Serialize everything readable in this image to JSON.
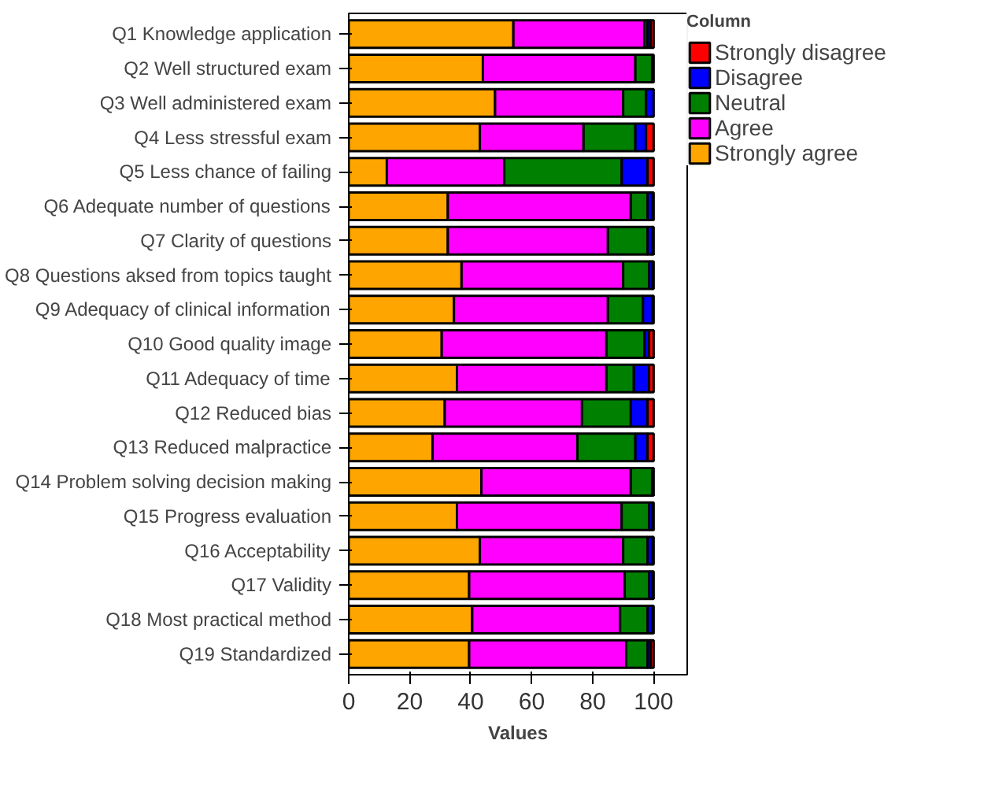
{
  "chart_data": {
    "type": "bar",
    "orientation": "horizontal",
    "stacked": true,
    "xlabel": "Values",
    "legend_title": "Column",
    "legend": "top right",
    "grid": false,
    "categories": [
      "Q1 Knowledge application",
      "Q2 Well structured exam",
      "Q3 Well administered exam",
      "Q4 Less stressful exam",
      "Q5 Less chance of failing",
      "Q6 Adequate number of questions",
      "Q7 Clarity of questions",
      "Q8 Questions aksed from topics taught",
      "Q9 Adequacy of clinical information",
      "Q10 Good quality image",
      "Q11 Adequacy of time",
      "Q12 Reduced bias",
      "Q13 Reduced malpractice",
      "Q14 Problem solving decision making",
      "Q15 Progress evaluation",
      "Q16 Acceptability",
      "Q17 Validity",
      "Q18 Most practical method",
      "Q19 Standardized"
    ],
    "xlim": [
      0,
      111
    ],
    "xticks": [
      0,
      20,
      40,
      60,
      80,
      100
    ],
    "series": [
      {
        "name": "Strongly agree",
        "color": "#ffa500",
        "values": [
          54,
          44,
          48,
          43,
          12.5,
          32.5,
          32.5,
          37,
          34.5,
          30.5,
          35.5,
          31.5,
          27.5,
          43.5,
          35.5,
          43,
          39.5,
          40.5,
          39.5
        ]
      },
      {
        "name": "Agree",
        "color": "#ff00ff",
        "values": [
          43,
          50,
          42,
          34,
          38.5,
          60,
          52.5,
          53,
          50.5,
          54,
          49,
          45,
          47.5,
          49,
          54,
          47,
          51,
          48.5,
          51.5
        ]
      },
      {
        "name": "Neutral",
        "color": "#008000",
        "values": [
          1,
          5.5,
          7.5,
          17,
          38.5,
          5.5,
          13,
          8.5,
          11.5,
          12.5,
          9,
          16,
          19,
          7,
          9,
          8,
          8,
          9,
          7
        ]
      },
      {
        "name": "Disagree",
        "color": "#0000ff",
        "values": [
          1,
          0.5,
          2.5,
          3.5,
          8.5,
          1.5,
          1.5,
          1,
          3,
          1.5,
          5,
          5.5,
          4,
          0.5,
          1,
          1.5,
          1,
          1.5,
          1
        ]
      },
      {
        "name": "Strongly disagree",
        "color": "#ff0000",
        "values": [
          1,
          0,
          0,
          2.5,
          2,
          0.5,
          0.5,
          0.5,
          0.5,
          1.5,
          1.5,
          2,
          2,
          0,
          0.5,
          0.5,
          0.5,
          0.5,
          1
        ]
      }
    ]
  }
}
